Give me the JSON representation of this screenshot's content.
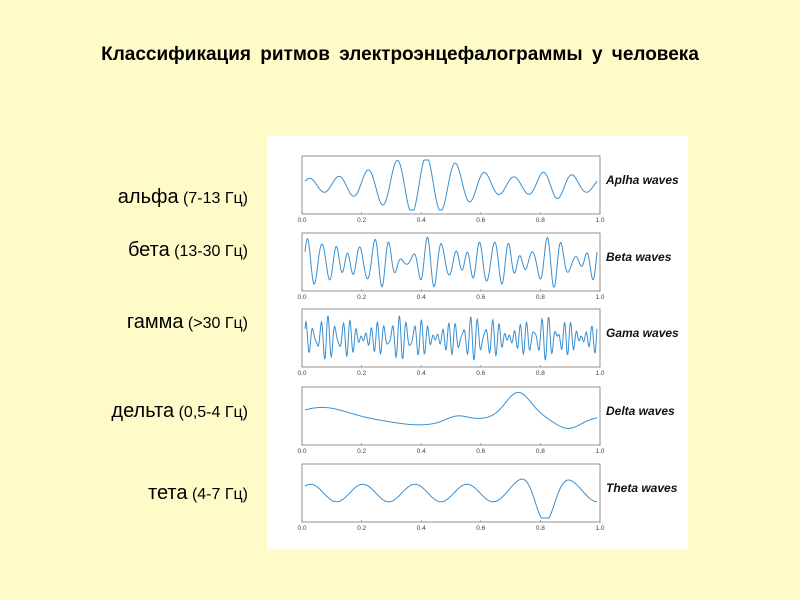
{
  "title": "Классификация ритмов электроэнцефалограммы у человека",
  "rhythms": [
    {
      "name": "альфа",
      "range": "(7-13 Гц)",
      "wave_label": "Aplha waves"
    },
    {
      "name": "бета",
      "range": "(13-30 Гц)",
      "wave_label": "Beta waves"
    },
    {
      "name": "гамма",
      "range": "(>30 Гц)",
      "wave_label": "Gama waves"
    },
    {
      "name": "дельта",
      "range": "(0,5-4 Гц)",
      "wave_label": "Delta waves"
    },
    {
      "name": "тета",
      "range": "(4-7 Гц)",
      "wave_label": "Theta waves"
    }
  ],
  "x_ticks": [
    "0.0",
    "0.2",
    "0.4",
    "0.6",
    "0.8",
    "1.0"
  ],
  "colors": {
    "background": "#fffbc8",
    "wave": "#3a8fd0",
    "panel": "#ffffff"
  }
}
